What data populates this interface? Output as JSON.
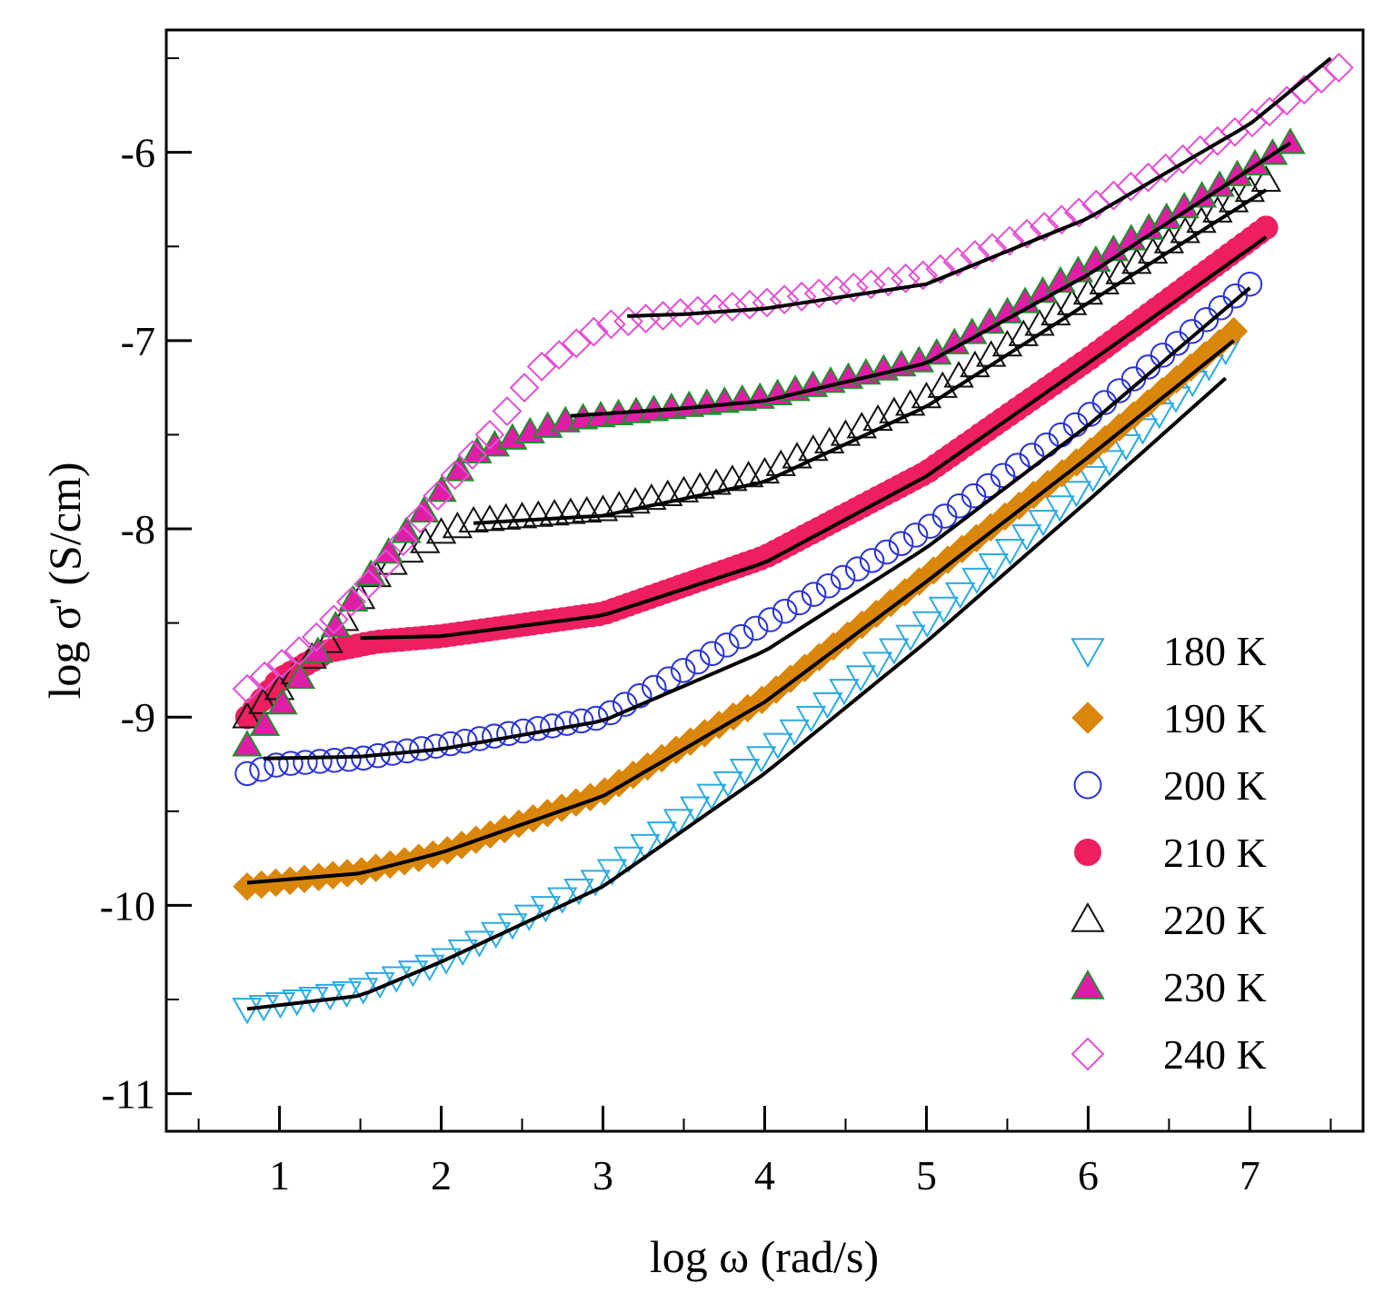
{
  "chart_data": {
    "type": "scatter",
    "title": "",
    "xlabel": "log ω (rad/s)",
    "ylabel": "log σ' (S/cm)",
    "xlim": [
      0.3,
      7.7
    ],
    "ylim": [
      -11.2,
      -5.35
    ],
    "xticks": [
      1,
      2,
      3,
      4,
      5,
      6,
      7
    ],
    "yticks": [
      -11,
      -10,
      -9,
      -8,
      -7,
      -6
    ],
    "xtick_labels": [
      "1",
      "2",
      "3",
      "4",
      "5",
      "6",
      "7"
    ],
    "ytick_labels": [
      "-11",
      "-10",
      "-9",
      "-8",
      "-7",
      "-6"
    ],
    "legend_position": "bottom-right",
    "fit_line_color": "#000000",
    "series": [
      {
        "name": "180 K",
        "marker": "triangle-down-open",
        "color": "#29abe2",
        "x_range": [
          0.8,
          6.85
        ],
        "anchors": [
          [
            0.8,
            -10.55
          ],
          [
            1.5,
            -10.45
          ],
          [
            2.0,
            -10.3
          ],
          [
            3.0,
            -9.85
          ],
          [
            4.0,
            -9.2
          ],
          [
            5.0,
            -8.5
          ],
          [
            6.0,
            -7.75
          ],
          [
            6.85,
            -7.05
          ]
        ],
        "fit_range": [
          0.8,
          6.85
        ],
        "fit_anchors": [
          [
            0.8,
            -10.55
          ],
          [
            1.5,
            -10.48
          ],
          [
            2.0,
            -10.3
          ],
          [
            3.0,
            -9.9
          ],
          [
            4.0,
            -9.3
          ],
          [
            5.0,
            -8.6
          ],
          [
            6.0,
            -7.85
          ],
          [
            6.85,
            -7.2
          ]
        ]
      },
      {
        "name": "190 K",
        "marker": "diamond-filled",
        "color": "#d9860b",
        "x_range": [
          0.8,
          6.9
        ],
        "anchors": [
          [
            0.8,
            -9.9
          ],
          [
            1.5,
            -9.82
          ],
          [
            2.0,
            -9.72
          ],
          [
            3.0,
            -9.4
          ],
          [
            4.0,
            -8.9
          ],
          [
            5.0,
            -8.25
          ],
          [
            6.0,
            -7.6
          ],
          [
            6.9,
            -6.95
          ]
        ],
        "fit_range": [
          0.8,
          6.9
        ],
        "fit_anchors": [
          [
            0.8,
            -9.88
          ],
          [
            1.5,
            -9.83
          ],
          [
            2.0,
            -9.72
          ],
          [
            3.0,
            -9.42
          ],
          [
            4.0,
            -8.92
          ],
          [
            5.0,
            -8.28
          ],
          [
            6.0,
            -7.62
          ],
          [
            6.9,
            -7.0
          ]
        ]
      },
      {
        "name": "200 K",
        "marker": "circle-open",
        "color": "#2832d6",
        "x_range": [
          0.8,
          7.0
        ],
        "anchors": [
          [
            0.8,
            -9.3
          ],
          [
            1.0,
            -9.25
          ],
          [
            1.5,
            -9.22
          ],
          [
            2.0,
            -9.15
          ],
          [
            3.0,
            -9.0
          ],
          [
            4.0,
            -8.5
          ],
          [
            5.0,
            -8.0
          ],
          [
            6.0,
            -7.4
          ],
          [
            7.0,
            -6.7
          ]
        ],
        "fit_range": [
          0.9,
          7.0
        ],
        "fit_anchors": [
          [
            0.9,
            -9.22
          ],
          [
            1.5,
            -9.21
          ],
          [
            2.0,
            -9.17
          ],
          [
            3.0,
            -9.02
          ],
          [
            4.0,
            -8.65
          ],
          [
            5.0,
            -8.1
          ],
          [
            6.0,
            -7.45
          ],
          [
            7.0,
            -6.72
          ]
        ]
      },
      {
        "name": "210 K",
        "marker": "circle-filled",
        "color": "#ee1f60",
        "x_range": [
          0.8,
          7.1
        ],
        "anchors": [
          [
            0.8,
            -9.0
          ],
          [
            1.0,
            -8.8
          ],
          [
            1.3,
            -8.65
          ],
          [
            1.6,
            -8.6
          ],
          [
            2.0,
            -8.57
          ],
          [
            3.0,
            -8.45
          ],
          [
            4.0,
            -8.15
          ],
          [
            5.0,
            -7.7
          ],
          [
            6.0,
            -7.1
          ],
          [
            7.1,
            -6.4
          ]
        ],
        "fit_range": [
          1.5,
          7.1
        ],
        "fit_anchors": [
          [
            1.5,
            -8.58
          ],
          [
            2.0,
            -8.57
          ],
          [
            3.0,
            -8.46
          ],
          [
            4.0,
            -8.18
          ],
          [
            5.0,
            -7.72
          ],
          [
            6.0,
            -7.12
          ],
          [
            7.1,
            -6.45
          ]
        ]
      },
      {
        "name": "220 K",
        "marker": "triangle-up-open",
        "color": "#111111",
        "x_range": [
          0.8,
          7.1
        ],
        "anchors": [
          [
            0.8,
            -9.0
          ],
          [
            1.0,
            -8.85
          ],
          [
            1.3,
            -8.6
          ],
          [
            1.6,
            -8.25
          ],
          [
            1.8,
            -8.12
          ],
          [
            2.0,
            -8.02
          ],
          [
            2.2,
            -7.96
          ],
          [
            3.0,
            -7.9
          ],
          [
            4.0,
            -7.7
          ],
          [
            5.0,
            -7.3
          ],
          [
            6.0,
            -6.75
          ],
          [
            7.1,
            -6.15
          ]
        ],
        "fit_range": [
          2.2,
          7.1
        ],
        "fit_anchors": [
          [
            2.2,
            -7.97
          ],
          [
            3.0,
            -7.93
          ],
          [
            4.0,
            -7.75
          ],
          [
            5.0,
            -7.35
          ],
          [
            6.0,
            -6.8
          ],
          [
            7.1,
            -6.2
          ]
        ]
      },
      {
        "name": "230 K",
        "marker": "triangle-up-filled",
        "color": "#e11da8",
        "edge_color": "#1e8f2a",
        "x_range": [
          0.8,
          7.25
        ],
        "anchors": [
          [
            0.8,
            -9.15
          ],
          [
            1.0,
            -8.95
          ],
          [
            1.2,
            -8.7
          ],
          [
            1.4,
            -8.45
          ],
          [
            1.6,
            -8.2
          ],
          [
            1.8,
            -8.0
          ],
          [
            2.0,
            -7.8
          ],
          [
            2.2,
            -7.6
          ],
          [
            2.5,
            -7.5
          ],
          [
            2.8,
            -7.42
          ],
          [
            3.5,
            -7.35
          ],
          [
            4.0,
            -7.3
          ],
          [
            5.0,
            -7.1
          ],
          [
            6.0,
            -6.6
          ],
          [
            7.25,
            -5.95
          ]
        ],
        "fit_range": [
          2.8,
          7.25
        ],
        "fit_anchors": [
          [
            2.8,
            -7.4
          ],
          [
            3.5,
            -7.36
          ],
          [
            4.0,
            -7.32
          ],
          [
            5.0,
            -7.12
          ],
          [
            6.0,
            -6.65
          ],
          [
            7.25,
            -5.95
          ]
        ]
      },
      {
        "name": "240 K",
        "marker": "diamond-open",
        "color": "#e34fd3",
        "x_range": [
          0.8,
          7.55
        ],
        "anchors": [
          [
            0.8,
            -8.85
          ],
          [
            1.2,
            -8.6
          ],
          [
            1.6,
            -8.25
          ],
          [
            2.0,
            -7.8
          ],
          [
            2.3,
            -7.5
          ],
          [
            2.6,
            -7.15
          ],
          [
            3.0,
            -6.92
          ],
          [
            3.5,
            -6.85
          ],
          [
            4.0,
            -6.8
          ],
          [
            5.0,
            -6.65
          ],
          [
            6.0,
            -6.3
          ],
          [
            7.0,
            -5.85
          ],
          [
            7.55,
            -5.55
          ]
        ],
        "fit_range": [
          3.15,
          7.5
        ],
        "fit_anchors": [
          [
            3.15,
            -6.87
          ],
          [
            3.5,
            -6.86
          ],
          [
            4.0,
            -6.83
          ],
          [
            5.0,
            -6.7
          ],
          [
            6.0,
            -6.35
          ],
          [
            7.0,
            -5.85
          ],
          [
            7.5,
            -5.5
          ]
        ]
      }
    ]
  }
}
